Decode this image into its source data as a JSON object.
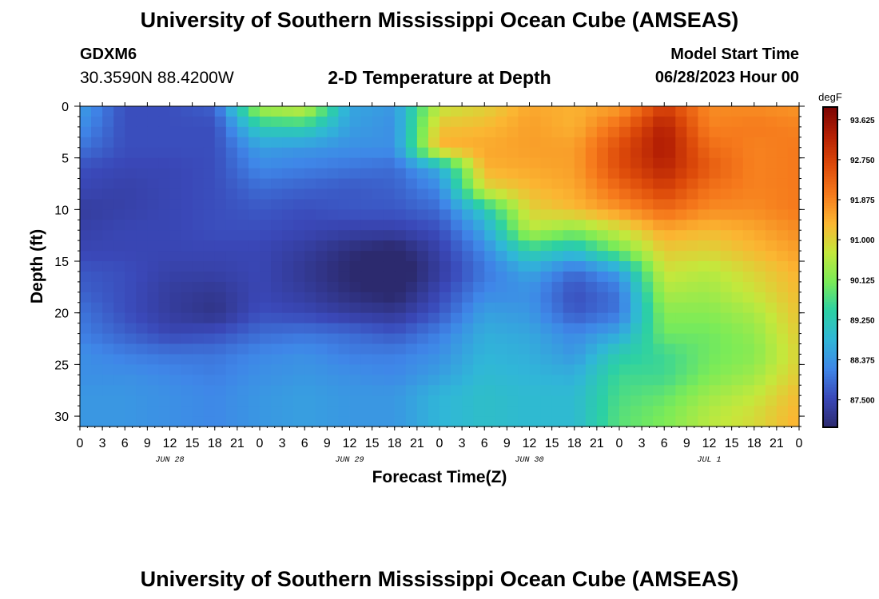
{
  "header": {
    "title": "University of Southern Mississippi Ocean Cube (AMSEAS)",
    "station_id": "GDXM6",
    "coordinates": "30.3590N  88.4200W",
    "subtitle": "2-D Temperature at Depth",
    "model_start_label": "Model Start Time",
    "model_start_value": "06/28/2023 Hour 00"
  },
  "footer": {
    "title": "University of Southern Mississippi Ocean Cube (AMSEAS)"
  },
  "chart_data": {
    "type": "heatmap",
    "xlabel": "Forecast Time(Z)",
    "ylabel": "Depth (ft)",
    "x_unit": "hours from 06/28/2023 00Z",
    "x_range": [
      0,
      96
    ],
    "x_tick_labels": [
      "0",
      "3",
      "6",
      "9",
      "12",
      "15",
      "18",
      "21",
      "0",
      "3",
      "6",
      "9",
      "12",
      "15",
      "18",
      "21",
      "0",
      "3",
      "6",
      "9",
      "12",
      "15",
      "18",
      "21",
      "0",
      "3",
      "6",
      "9",
      "12",
      "15",
      "18",
      "21",
      "0"
    ],
    "date_labels": [
      "JUN 28",
      "JUN 29",
      "JUN 30",
      "JUL 1"
    ],
    "ylim": [
      0,
      31
    ],
    "y_inverted": true,
    "y_ticks": [
      0,
      5,
      10,
      15,
      20,
      25,
      30
    ],
    "colorbar_label": "degF",
    "colorbar_ticks": [
      "93.625",
      "92.750",
      "91.875",
      "91.000",
      "90.125",
      "89.250",
      "88.375",
      "87.500"
    ],
    "value_range": [
      86.9,
      93.9
    ],
    "colors": [
      "#2c2a6e",
      "#3a48b8",
      "#3f86e8",
      "#30b6d8",
      "#2cd0a4",
      "#7aeb58",
      "#c4e83c",
      "#fbb632",
      "#f67a1c",
      "#dd4a0a",
      "#b52004",
      "#7a0403"
    ],
    "depths": [
      0,
      2,
      4,
      6,
      8,
      10,
      12,
      14,
      16,
      18,
      20,
      22,
      24,
      26,
      28,
      30
    ],
    "time_hours": [
      0,
      6,
      12,
      18,
      24,
      30,
      36,
      42,
      48,
      54,
      60,
      66,
      72,
      78,
      84,
      90,
      96
    ],
    "values": [
      [
        88.5,
        87.6,
        87.6,
        87.8,
        90.6,
        90.9,
        88.6,
        88.4,
        90.7,
        91.0,
        91.5,
        91.4,
        91.6,
        92.8,
        91.8,
        91.8,
        91.7
      ],
      [
        88.3,
        87.6,
        87.6,
        87.6,
        89.3,
        89.4,
        88.5,
        88.3,
        91.2,
        91.3,
        91.6,
        91.4,
        92.2,
        93.3,
        91.9,
        92.0,
        91.9
      ],
      [
        88.0,
        87.6,
        87.6,
        87.6,
        88.5,
        88.4,
        88.3,
        88.3,
        91.4,
        91.5,
        91.6,
        91.6,
        92.6,
        93.4,
        92.2,
        91.9,
        92.0
      ],
      [
        87.6,
        87.5,
        87.5,
        87.6,
        88.2,
        88.1,
        88.0,
        87.9,
        88.7,
        91.4,
        91.5,
        91.6,
        92.6,
        93.2,
        92.4,
        91.9,
        92.0
      ],
      [
        87.5,
        87.4,
        87.5,
        87.6,
        87.9,
        87.8,
        87.7,
        87.8,
        88.2,
        90.9,
        91.3,
        91.5,
        92.2,
        92.8,
        92.1,
        91.9,
        92.0
      ],
      [
        87.3,
        87.4,
        87.5,
        87.6,
        87.7,
        87.6,
        87.7,
        87.7,
        87.9,
        89.2,
        91.0,
        91.3,
        91.7,
        92.2,
        91.8,
        91.8,
        92.0
      ],
      [
        87.4,
        87.5,
        87.5,
        87.6,
        87.6,
        87.5,
        87.4,
        87.4,
        87.6,
        88.6,
        90.6,
        90.2,
        90.8,
        91.5,
        91.3,
        91.5,
        91.8
      ],
      [
        87.5,
        87.5,
        87.5,
        87.5,
        87.5,
        87.3,
        87.0,
        86.8,
        87.4,
        88.2,
        89.4,
        89.0,
        90.0,
        91.1,
        91.0,
        91.3,
        91.6
      ],
      [
        87.7,
        87.6,
        87.4,
        87.4,
        87.5,
        87.2,
        86.9,
        86.6,
        87.3,
        88.0,
        88.6,
        87.9,
        88.5,
        90.8,
        90.6,
        91.0,
        91.4
      ],
      [
        87.8,
        87.6,
        87.3,
        87.2,
        87.5,
        87.3,
        87.0,
        86.8,
        87.5,
        88.2,
        88.3,
        87.6,
        88.0,
        90.5,
        90.4,
        90.8,
        91.3
      ],
      [
        88.0,
        87.6,
        87.3,
        87.1,
        87.6,
        87.5,
        87.3,
        87.2,
        87.7,
        88.5,
        88.4,
        87.7,
        88.0,
        90.2,
        90.2,
        90.5,
        91.2
      ],
      [
        88.1,
        87.8,
        87.5,
        87.6,
        87.9,
        88.0,
        87.9,
        87.7,
        88.1,
        88.7,
        88.6,
        88.2,
        88.6,
        90.0,
        90.0,
        90.3,
        91.1
      ],
      [
        88.3,
        88.1,
        88.0,
        88.0,
        88.2,
        88.3,
        88.1,
        88.1,
        88.3,
        88.8,
        88.7,
        88.4,
        89.3,
        89.6,
        90.0,
        90.2,
        91.0
      ],
      [
        88.3,
        88.3,
        88.2,
        88.1,
        88.3,
        88.4,
        88.3,
        88.2,
        88.5,
        88.9,
        88.8,
        88.7,
        89.6,
        89.6,
        90.1,
        90.4,
        91.1
      ],
      [
        88.4,
        88.4,
        88.3,
        88.2,
        88.4,
        88.5,
        88.4,
        88.4,
        88.8,
        89.0,
        88.9,
        88.9,
        89.7,
        89.9,
        90.4,
        90.7,
        91.3
      ],
      [
        88.4,
        88.4,
        88.3,
        88.2,
        88.4,
        88.5,
        88.4,
        88.4,
        88.8,
        89.0,
        88.9,
        88.9,
        89.8,
        90.1,
        90.6,
        90.9,
        91.4
      ]
    ]
  }
}
